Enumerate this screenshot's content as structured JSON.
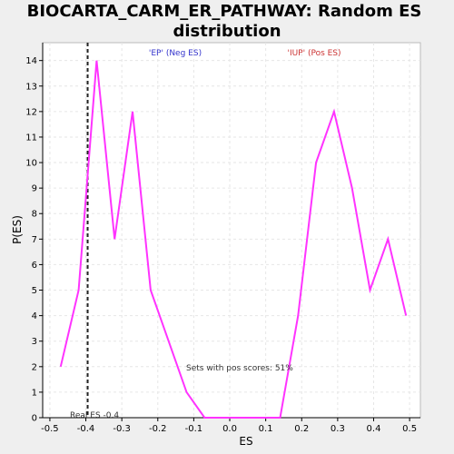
{
  "chart_data": {
    "type": "line",
    "title_line1": "BIOCARTA_CARM_ER_PATHWAY: Random ES",
    "title_line2": "distribution",
    "xlabel": "ES",
    "ylabel": "P(ES)",
    "xlim": [
      -0.52,
      0.53
    ],
    "ylim": [
      0,
      14.7
    ],
    "xticks": [
      -0.5,
      -0.4,
      -0.3,
      -0.2,
      -0.1,
      0.0,
      0.1,
      0.2,
      0.3,
      0.4,
      0.5
    ],
    "xtick_labels": [
      "-0.5",
      "-0.4",
      "-0.3",
      "-0.2",
      "-0.1",
      "0.0",
      "0.1",
      "0.2",
      "0.3",
      "0.4",
      "0.5"
    ],
    "yticks": [
      0,
      1,
      2,
      3,
      4,
      5,
      6,
      7,
      8,
      9,
      10,
      11,
      12,
      13,
      14
    ],
    "grid": true,
    "series": [
      {
        "color": "#ff33ff",
        "x": [
          -0.47,
          -0.42,
          -0.37,
          -0.32,
          -0.27,
          -0.22,
          -0.17,
          -0.12,
          -0.07,
          -0.02,
          0.04,
          0.09,
          0.14,
          0.19,
          0.24,
          0.29,
          0.34,
          0.39,
          0.44,
          0.49
        ],
        "y": [
          2,
          5,
          14,
          7,
          12,
          5,
          3,
          1,
          0,
          0,
          0,
          0,
          0,
          4,
          10,
          12,
          9,
          5,
          7,
          4
        ]
      }
    ],
    "real_es": -0.395,
    "annotations": {
      "neg_label": "'EP' (Neg ES)",
      "neg_color": "#3333cc",
      "pos_label": "'IUP' (Pos ES)",
      "pos_color": "#cc3333",
      "pos_scores": "Sets with pos scores: 51%",
      "real_es_label": "Real ES -0.4"
    }
  }
}
